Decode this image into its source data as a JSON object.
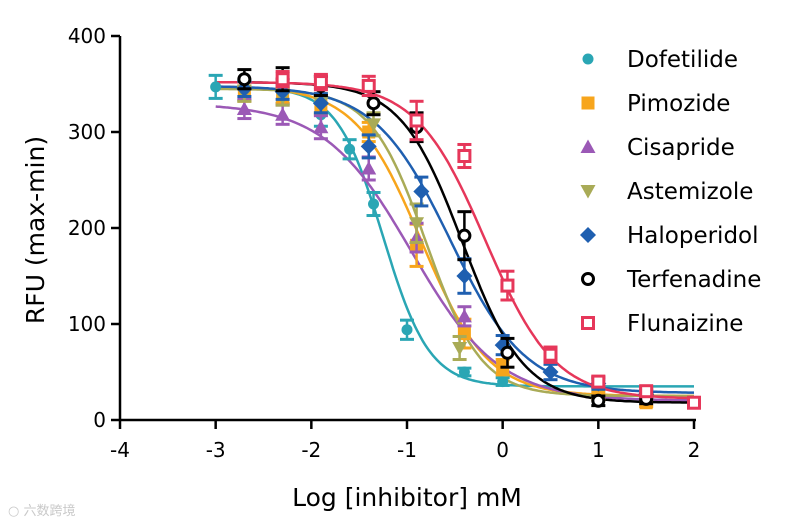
{
  "chart_data": {
    "type": "scatter",
    "title": "",
    "xlabel": "Log [inhibitor] mM",
    "ylabel": "RFU (max-min)",
    "xlim": [
      -4,
      2
    ],
    "ylim": [
      0,
      400
    ],
    "xticks": [
      -4,
      -3,
      -2,
      -1,
      0,
      1,
      2
    ],
    "yticks": [
      0,
      100,
      200,
      300,
      400
    ],
    "grid": false,
    "legend": "top-right",
    "series": [
      {
        "name": "Dofetilide",
        "color": "#2aa6b4",
        "marker": "circle",
        "x": [
          -3.0,
          -2.7,
          -2.3,
          -1.9,
          -1.6,
          -1.35,
          -1.0,
          -0.4,
          0.0,
          1.0,
          1.5
        ],
        "y": [
          347,
          343,
          338,
          318,
          282,
          225,
          94,
          50,
          40,
          38,
          27
        ],
        "err": [
          12,
          10,
          8,
          12,
          10,
          12,
          10,
          4,
          4,
          4,
          4
        ],
        "fit": {
          "top": 347,
          "bottom": 35,
          "logic50": -1.25,
          "hill": 1.8
        }
      },
      {
        "name": "Pimozide",
        "color": "#f7a51c",
        "marker": "square",
        "x": [
          -2.7,
          -2.3,
          -1.9,
          -1.4,
          -0.9,
          -0.4,
          0.0,
          1.0,
          1.5
        ],
        "y": [
          340,
          338,
          328,
          300,
          182,
          90,
          55,
          25,
          18
        ],
        "err": [
          8,
          8,
          10,
          10,
          22,
          15,
          8,
          4,
          4
        ],
        "fit": {
          "top": 348,
          "bottom": 25,
          "logic50": -0.85,
          "hill": 1.25
        }
      },
      {
        "name": "Cisapride",
        "color": "#9b59b6",
        "marker": "triangle-up",
        "x": [
          -2.7,
          -2.3,
          -1.9,
          -1.4,
          -0.9,
          -0.4
        ],
        "y": [
          324,
          318,
          305,
          262,
          190,
          108
        ],
        "err": [
          10,
          10,
          12,
          12,
          15,
          10
        ],
        "fit": {
          "top": 330,
          "bottom": 20,
          "logic50": -0.95,
          "hill": 0.95
        }
      },
      {
        "name": "Astemizole",
        "color": "#a9ab57",
        "marker": "triangle-down",
        "x": [
          -2.7,
          -2.3,
          -1.9,
          -1.35,
          -0.9,
          -0.45
        ],
        "y": [
          340,
          336,
          330,
          308,
          205,
          75
        ],
        "err": [
          8,
          8,
          10,
          12,
          20,
          12
        ],
        "fit": {
          "top": 345,
          "bottom": 25,
          "logic50": -0.8,
          "hill": 1.5
        }
      },
      {
        "name": "Haloperidol",
        "color": "#1f5fb0",
        "marker": "diamond",
        "x": [
          -2.7,
          -2.3,
          -1.9,
          -1.4,
          -0.85,
          -0.4,
          0.0,
          0.5,
          1.0,
          1.5
        ],
        "y": [
          345,
          342,
          330,
          285,
          238,
          150,
          78,
          50,
          38,
          27
        ],
        "err": [
          8,
          8,
          10,
          12,
          15,
          18,
          10,
          8,
          6,
          4
        ],
        "fit": {
          "top": 348,
          "bottom": 28,
          "logic50": -0.55,
          "hill": 1.1
        }
      },
      {
        "name": "Terfenadine",
        "color": "#000000",
        "marker": "circle-open",
        "x": [
          -2.7,
          -2.3,
          -1.9,
          -1.35,
          -0.9,
          -0.4,
          0.05,
          1.0,
          1.5
        ],
        "y": [
          355,
          355,
          348,
          330,
          305,
          192,
          70,
          20,
          22
        ],
        "err": [
          10,
          12,
          10,
          12,
          15,
          25,
          15,
          5,
          5
        ],
        "fit": {
          "top": 352,
          "bottom": 18,
          "logic50": -0.42,
          "hill": 1.35
        }
      },
      {
        "name": "Flunaizine",
        "color": "#e6375a",
        "marker": "square-open",
        "x": [
          -2.3,
          -1.9,
          -1.4,
          -0.9,
          -0.4,
          0.05,
          0.5,
          1.0,
          1.5,
          2.0
        ],
        "y": [
          355,
          352,
          348,
          312,
          275,
          140,
          68,
          40,
          30,
          18
        ],
        "err": [
          8,
          8,
          10,
          20,
          12,
          15,
          8,
          5,
          4,
          4
        ],
        "fit": {
          "top": 352,
          "bottom": 22,
          "logic50": -0.18,
          "hill": 1.2
        }
      }
    ]
  }
}
